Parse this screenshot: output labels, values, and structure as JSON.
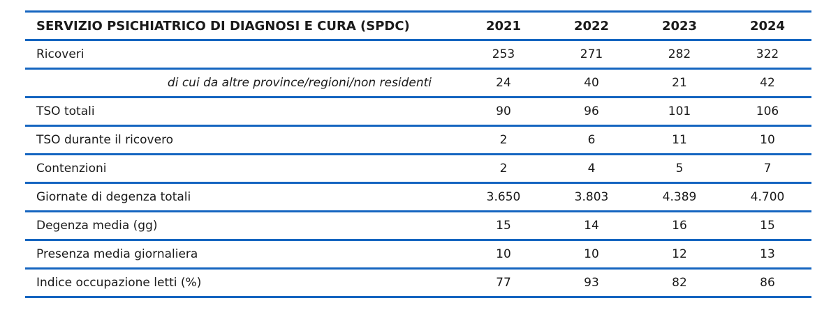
{
  "table": {
    "title": "SERVIZIO PSICHIATRICO DI DIAGNOSI E CURA (SPDC)",
    "years": [
      "2021",
      "2022",
      "2023",
      "2024"
    ],
    "rows": [
      {
        "label": "Ricoveri",
        "values": [
          "253",
          "271",
          "282",
          "322"
        ]
      },
      {
        "label": "di cui da altre province/regioni/non residenti",
        "values": [
          "24",
          "40",
          "21",
          "42"
        ],
        "sub": true
      },
      {
        "label": "TSO totali",
        "values": [
          "90",
          "96",
          "101",
          "106"
        ]
      },
      {
        "label": "TSO durante il ricovero",
        "values": [
          "2",
          "6",
          "11",
          "10"
        ]
      },
      {
        "label": "Contenzioni",
        "values": [
          "2",
          "4",
          "5",
          "7"
        ]
      },
      {
        "label": "Giornate di degenza totali",
        "values": [
          "3.650",
          "3.803",
          "4.389",
          "4.700"
        ]
      },
      {
        "label": "Degenza media (gg)",
        "values": [
          "15",
          "14",
          "16",
          "15"
        ]
      },
      {
        "label": "Presenza media giornaliera",
        "values": [
          "10",
          "10",
          "12",
          "13"
        ]
      },
      {
        "label": "Indice occupazione letti (%)",
        "values": [
          "77",
          "93",
          "82",
          "86"
        ]
      }
    ]
  },
  "colors": {
    "rule": "#1565c0",
    "text": "#1a1a1a"
  }
}
